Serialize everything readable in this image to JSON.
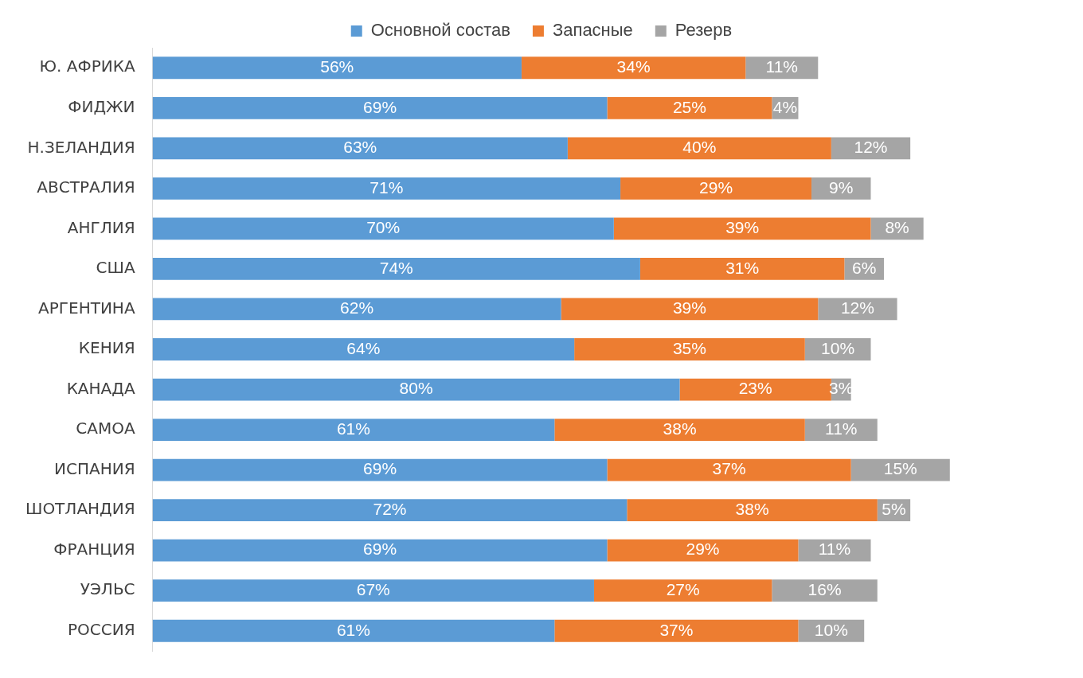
{
  "chart_data": {
    "type": "bar",
    "orientation": "horizontal",
    "stacked": true,
    "legend": "top",
    "grid": false,
    "categories": [
      "Ю. АФРИКА",
      "ФИДЖИ",
      "Н.ЗЕЛАНДИЯ",
      "АВСТРАЛИЯ",
      "АНГЛИЯ",
      "США",
      "АРГЕНТИНА",
      "КЕНИЯ",
      "КАНАДА",
      "САМОА",
      "ИСПАНИЯ",
      "ШОТЛАНДИЯ",
      "ФРАНЦИЯ",
      "УЭЛЬС",
      "РОССИЯ"
    ],
    "series": [
      {
        "name": "Основной состав",
        "color": "#5b9bd5",
        "values": [
          56,
          69,
          63,
          71,
          70,
          74,
          62,
          64,
          80,
          61,
          69,
          72,
          69,
          67,
          61
        ],
        "value_labels": [
          "56%",
          "69%",
          "63%",
          "71%",
          "70%",
          "74%",
          "62%",
          "64%",
          "80%",
          "61%",
          "69%",
          "72%",
          "69%",
          "67%",
          "61%"
        ]
      },
      {
        "name": "Запасные",
        "color": "#ed7d31",
        "values": [
          34,
          25,
          40,
          29,
          39,
          31,
          39,
          35,
          23,
          38,
          37,
          38,
          29,
          27,
          37
        ],
        "value_labels": [
          "34%",
          "25%",
          "40%",
          "29%",
          "39%",
          "31%",
          "39%",
          "35%",
          "23%",
          "38%",
          "37%",
          "38%",
          "29%",
          "27%",
          "37%"
        ]
      },
      {
        "name": "Резерв",
        "color": "#a5a5a5",
        "values": [
          11,
          4,
          12,
          9,
          8,
          6,
          12,
          10,
          3,
          11,
          15,
          5,
          11,
          16,
          10
        ],
        "value_labels": [
          "11%",
          "4%",
          "12%",
          "9%",
          "8%",
          "6%",
          "12%",
          "10%",
          "3%",
          "11%",
          "15%",
          "5%",
          "11%",
          "16%",
          "10%"
        ]
      }
    ]
  }
}
